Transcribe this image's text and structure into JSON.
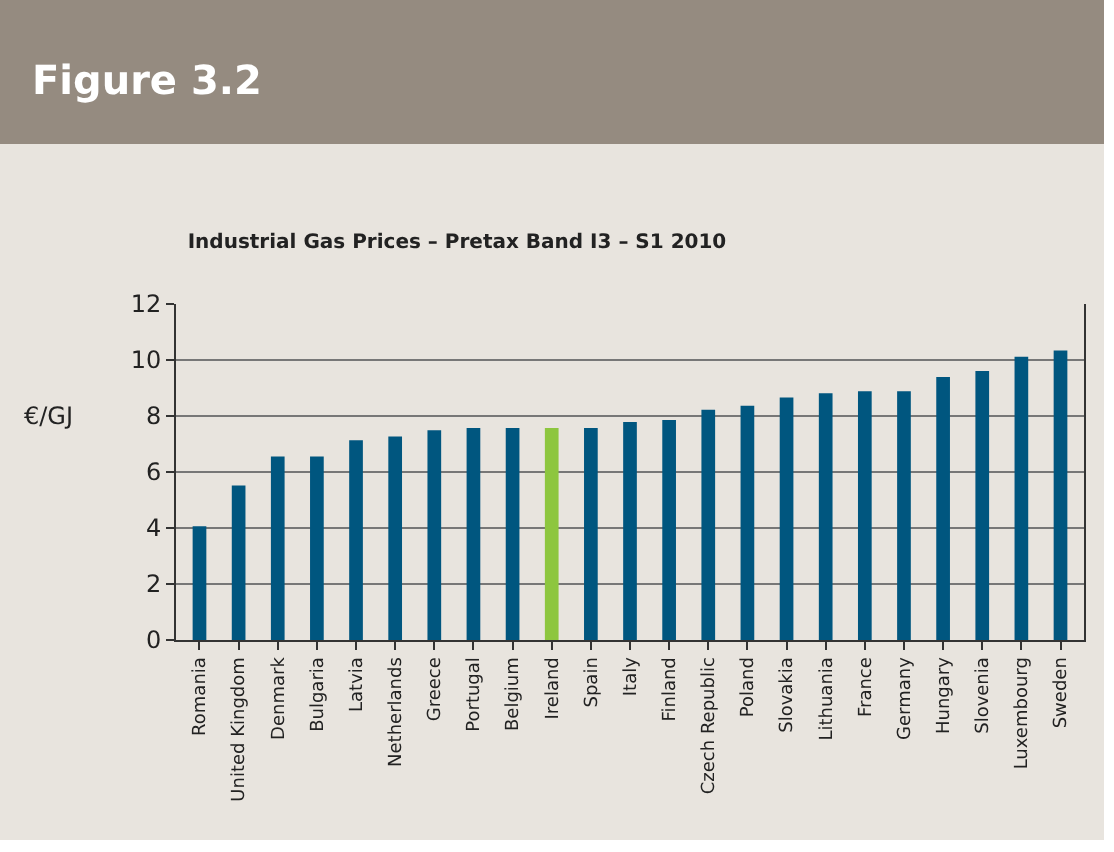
{
  "chart_data": {
    "type": "bar",
    "title": "Figure 3.2",
    "subtitle": "Industrial Gas Prices – Pretax Band I3 – S1 2010",
    "ylabel": "€/GJ",
    "categories": [
      "Romania",
      "United Kingdom",
      "Denmark",
      "Bulgaria",
      "Latvia",
      "Netherlands",
      "Greece",
      "Portugal",
      "Belgium",
      "Ireland",
      "Spain",
      "Italy",
      "Finland",
      "Czech Republic",
      "Poland",
      "Slovakia",
      "Lithuania",
      "France",
      "Germany",
      "Hungary",
      "Slovenia",
      "Luxembourg",
      "Sweden"
    ],
    "values": [
      4.06,
      5.52,
      6.55,
      6.55,
      7.13,
      7.27,
      7.49,
      7.57,
      7.57,
      7.57,
      7.57,
      7.79,
      7.86,
      8.22,
      8.37,
      8.66,
      8.81,
      8.88,
      8.88,
      9.39,
      9.61,
      10.12,
      10.34
    ],
    "colors": [
      "#00567f",
      "#00567f",
      "#00567f",
      "#00567f",
      "#00567f",
      "#00567f",
      "#00567f",
      "#00567f",
      "#00567f",
      "#8dc63f",
      "#00567f",
      "#00567f",
      "#00567f",
      "#00567f",
      "#00567f",
      "#00567f",
      "#00567f",
      "#00567f",
      "#00567f",
      "#00567f",
      "#00567f",
      "#00567f",
      "#00567f"
    ],
    "ylim": [
      0,
      12
    ],
    "yticks": [
      0,
      2,
      4,
      6,
      8,
      10,
      12
    ],
    "grid": "y"
  }
}
